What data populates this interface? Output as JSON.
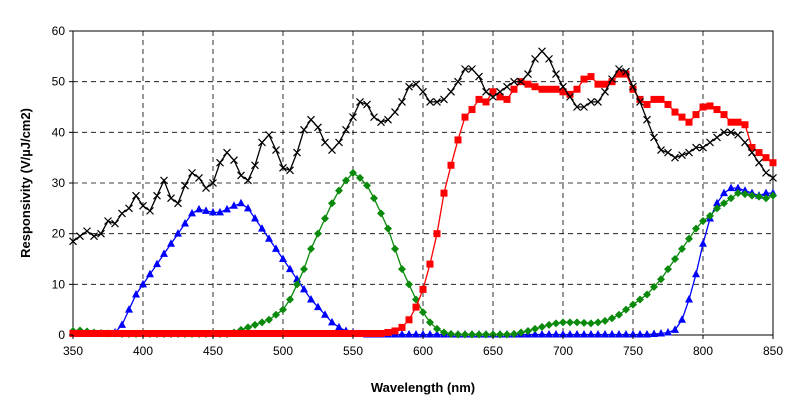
{
  "chart_data": {
    "type": "line",
    "title": "",
    "xlabel": "Wavelength (nm)",
    "ylabel": "Responsivity (V/µJ/cm2)",
    "xlim": [
      350,
      850
    ],
    "ylim": [
      0,
      60
    ],
    "x_ticks": [
      "350",
      "400",
      "450",
      "500",
      "550",
      "600",
      "650",
      "700",
      "750",
      "800",
      "850"
    ],
    "y_ticks": [
      "0",
      "10",
      "20",
      "30",
      "40",
      "50",
      "60"
    ],
    "grid": true,
    "legend": "none",
    "series": [
      {
        "color": "#0000ff",
        "marker": "triangle",
        "x": [
          350,
          355,
          360,
          365,
          370,
          375,
          380,
          385,
          390,
          395,
          400,
          405,
          410,
          415,
          420,
          425,
          430,
          435,
          440,
          445,
          450,
          455,
          460,
          465,
          470,
          475,
          480,
          485,
          490,
          495,
          500,
          505,
          510,
          515,
          520,
          525,
          530,
          535,
          540,
          545,
          550,
          555,
          560,
          565,
          570,
          575,
          580,
          585,
          590,
          595,
          600,
          605,
          610,
          615,
          620,
          625,
          630,
          635,
          640,
          645,
          650,
          655,
          660,
          665,
          670,
          675,
          680,
          685,
          690,
          695,
          700,
          705,
          710,
          715,
          720,
          725,
          730,
          735,
          740,
          745,
          750,
          755,
          760,
          765,
          770,
          775,
          780,
          785,
          790,
          795,
          800,
          805,
          810,
          815,
          820,
          825,
          830,
          835,
          840,
          845,
          850
        ],
        "y": [
          0.5,
          0.4,
          0.5,
          0.3,
          0.2,
          0.2,
          0.5,
          2,
          5,
          8,
          10,
          12,
          14,
          16,
          18,
          20,
          22,
          24,
          24.8,
          24.5,
          24.2,
          24.2,
          24.8,
          25.5,
          26,
          25,
          23,
          21,
          19,
          17,
          15,
          13,
          11,
          9,
          7,
          5.5,
          4,
          2.5,
          1.5,
          0.8,
          0.4,
          0.2,
          0.1,
          0.1,
          0.1,
          0.1,
          0.1,
          0.1,
          0.1,
          0.1,
          0.1,
          0.1,
          0.1,
          0.1,
          0.1,
          0.1,
          0.1,
          0.1,
          0.1,
          0.1,
          0.1,
          0.1,
          0.1,
          0.1,
          0.1,
          0.1,
          0.1,
          0.1,
          0.1,
          0.1,
          0.1,
          0.1,
          0.1,
          0.1,
          0.1,
          0.1,
          0.1,
          0.1,
          0.1,
          0.1,
          0.1,
          0.1,
          0.1,
          0.2,
          0.3,
          0.5,
          1,
          3,
          7,
          12,
          18,
          23,
          26,
          28,
          29,
          29,
          28.5,
          28,
          27.5,
          28,
          28
        ]
      },
      {
        "color": "#0a8a0a",
        "marker": "diamond",
        "x": [
          350,
          355,
          360,
          365,
          370,
          375,
          380,
          385,
          390,
          395,
          400,
          405,
          410,
          415,
          420,
          425,
          430,
          435,
          440,
          445,
          450,
          455,
          460,
          465,
          470,
          475,
          480,
          485,
          490,
          495,
          500,
          505,
          510,
          515,
          520,
          525,
          530,
          535,
          540,
          545,
          550,
          555,
          560,
          565,
          570,
          575,
          580,
          585,
          590,
          595,
          600,
          605,
          610,
          615,
          620,
          625,
          630,
          635,
          640,
          645,
          650,
          655,
          660,
          665,
          670,
          675,
          680,
          685,
          690,
          695,
          700,
          705,
          710,
          715,
          720,
          725,
          730,
          735,
          740,
          745,
          750,
          755,
          760,
          765,
          770,
          775,
          780,
          785,
          790,
          795,
          800,
          805,
          810,
          815,
          820,
          825,
          830,
          835,
          840,
          845,
          850
        ],
        "y": [
          0.8,
          0.9,
          0.7,
          0.5,
          0.4,
          0.3,
          0.3,
          0.2,
          0.2,
          0.2,
          0.2,
          0.2,
          0.2,
          0.2,
          0.2,
          0.2,
          0.2,
          0.2,
          0.2,
          0.2,
          0.2,
          0.2,
          0.2,
          0.5,
          1,
          1.5,
          2,
          2.5,
          3,
          4,
          5,
          7,
          10,
          13,
          17,
          20,
          23,
          26,
          28.5,
          30.5,
          32,
          31,
          29.5,
          27,
          24,
          21,
          17,
          13,
          10,
          7,
          4.5,
          2.5,
          1.2,
          0.5,
          0.2,
          0.1,
          0.1,
          0.1,
          0.1,
          0.1,
          0.1,
          0.1,
          0.1,
          0.2,
          0.5,
          0.8,
          1.2,
          1.6,
          2,
          2.3,
          2.5,
          2.5,
          2.5,
          2.4,
          2.3,
          2.5,
          2.8,
          3.3,
          4,
          5,
          6,
          7,
          8,
          9.5,
          11,
          13,
          15,
          17,
          19,
          21,
          22.5,
          23.5,
          25,
          26,
          27,
          28,
          27.8,
          27.5,
          27.3,
          27,
          27.5
        ]
      },
      {
        "color": "#ff0000",
        "marker": "square",
        "x": [
          350,
          355,
          360,
          365,
          370,
          375,
          380,
          385,
          390,
          395,
          400,
          405,
          410,
          415,
          420,
          425,
          430,
          435,
          440,
          445,
          450,
          455,
          460,
          465,
          470,
          475,
          480,
          485,
          490,
          495,
          500,
          505,
          510,
          515,
          520,
          525,
          530,
          535,
          540,
          545,
          550,
          555,
          560,
          565,
          570,
          575,
          580,
          585,
          590,
          595,
          600,
          605,
          610,
          615,
          620,
          625,
          630,
          635,
          640,
          645,
          650,
          655,
          660,
          665,
          670,
          675,
          680,
          685,
          690,
          695,
          700,
          705,
          710,
          715,
          720,
          725,
          730,
          735,
          740,
          745,
          750,
          755,
          760,
          765,
          770,
          775,
          780,
          785,
          790,
          795,
          800,
          805,
          810,
          815,
          820,
          825,
          830,
          835,
          840,
          845,
          850
        ],
        "y": [
          0.3,
          0.3,
          0.3,
          0.3,
          0.3,
          0.3,
          0.3,
          0.3,
          0.3,
          0.3,
          0.3,
          0.3,
          0.3,
          0.3,
          0.3,
          0.3,
          0.3,
          0.3,
          0.3,
          0.3,
          0.3,
          0.3,
          0.3,
          0.3,
          0.3,
          0.3,
          0.3,
          0.3,
          0.3,
          0.3,
          0.3,
          0.3,
          0.3,
          0.3,
          0.3,
          0.3,
          0.3,
          0.3,
          0.3,
          0.3,
          0.3,
          0.3,
          0.3,
          0.3,
          0.3,
          0.5,
          0.8,
          1.5,
          3,
          5.5,
          9,
          14,
          20,
          28,
          33.5,
          38.5,
          43,
          44.5,
          46.5,
          46,
          48,
          47,
          46.5,
          48.5,
          50,
          49.5,
          49,
          48.5,
          48.5,
          48.5,
          48,
          47.5,
          48.5,
          50.5,
          51,
          49.5,
          49.5,
          50,
          51.5,
          51.5,
          48.5,
          46.5,
          45.5,
          46.5,
          46.5,
          45.5,
          44,
          43,
          42,
          43.5,
          45,
          45.2,
          44.5,
          43.5,
          42,
          42,
          41.5,
          37,
          36,
          35,
          34
        ]
      },
      {
        "color": "#000000",
        "marker": "x",
        "x": [
          350,
          355,
          360,
          365,
          370,
          375,
          380,
          385,
          390,
          395,
          400,
          405,
          410,
          415,
          420,
          425,
          430,
          435,
          440,
          445,
          450,
          455,
          460,
          465,
          470,
          475,
          480,
          485,
          490,
          495,
          500,
          505,
          510,
          515,
          520,
          525,
          530,
          535,
          540,
          545,
          550,
          555,
          560,
          565,
          570,
          575,
          580,
          585,
          590,
          595,
          600,
          605,
          610,
          615,
          620,
          625,
          630,
          635,
          640,
          645,
          650,
          655,
          660,
          665,
          670,
          675,
          680,
          685,
          690,
          695,
          700,
          705,
          710,
          715,
          720,
          725,
          730,
          735,
          740,
          745,
          750,
          755,
          760,
          765,
          770,
          775,
          780,
          785,
          790,
          795,
          800,
          805,
          810,
          815,
          820,
          825,
          830,
          835,
          840,
          845,
          850
        ],
        "y": [
          18.5,
          19.5,
          20.5,
          19.5,
          20,
          22.5,
          22,
          24,
          25,
          27.5,
          25.5,
          24.5,
          27.5,
          30.5,
          27,
          26,
          29.5,
          32,
          31,
          29,
          30,
          34,
          36,
          34.5,
          31.5,
          30.5,
          33.5,
          38,
          39.5,
          36.5,
          33,
          32.5,
          36,
          40.5,
          42.5,
          41,
          38,
          36.5,
          38,
          40.5,
          43,
          46,
          45.5,
          43,
          42,
          42.5,
          44,
          46,
          49,
          49.5,
          48,
          46,
          46,
          46.5,
          48,
          50,
          52.5,
          52.5,
          51,
          48,
          47,
          48,
          49,
          50,
          50,
          51.5,
          54.5,
          56,
          54.5,
          51.5,
          49,
          47,
          45,
          45,
          46,
          46,
          48,
          50.5,
          52.5,
          52,
          49,
          46,
          42.5,
          39,
          36.5,
          36,
          35,
          35.5,
          36,
          37,
          37,
          38,
          39,
          40,
          40,
          39.5,
          38,
          36,
          34,
          32,
          31
        ]
      }
    ]
  }
}
